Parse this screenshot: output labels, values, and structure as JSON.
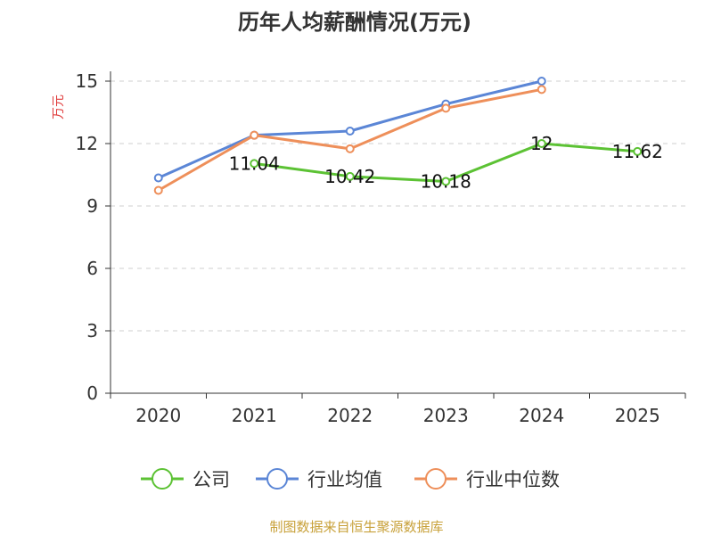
{
  "chart_data": {
    "type": "line",
    "title": "历年人均薪酬情况(万元)",
    "ylabel": "万元",
    "xlabel": "",
    "categories": [
      "2020",
      "2021",
      "2022",
      "2023",
      "2024",
      "2025"
    ],
    "ylim": [
      0,
      15
    ],
    "yticks": [
      0,
      3,
      6,
      9,
      12,
      15
    ],
    "grid": true,
    "legend_position": "bottom",
    "series": [
      {
        "name": "公司",
        "color": "#5cc234",
        "values": [
          null,
          11.04,
          10.42,
          10.18,
          12,
          11.62
        ],
        "labels": [
          "",
          "11.04",
          "10.42",
          "10.18",
          "12",
          "11.62"
        ]
      },
      {
        "name": "行业均值",
        "color": "#5b86d6",
        "values": [
          10.35,
          12.4,
          12.6,
          13.9,
          15.0,
          null
        ]
      },
      {
        "name": "行业中位数",
        "color": "#ee8f5a",
        "values": [
          9.75,
          12.4,
          11.75,
          13.7,
          14.6,
          null
        ]
      }
    ]
  },
  "source_text": "制图数据来自恒生聚源数据库"
}
